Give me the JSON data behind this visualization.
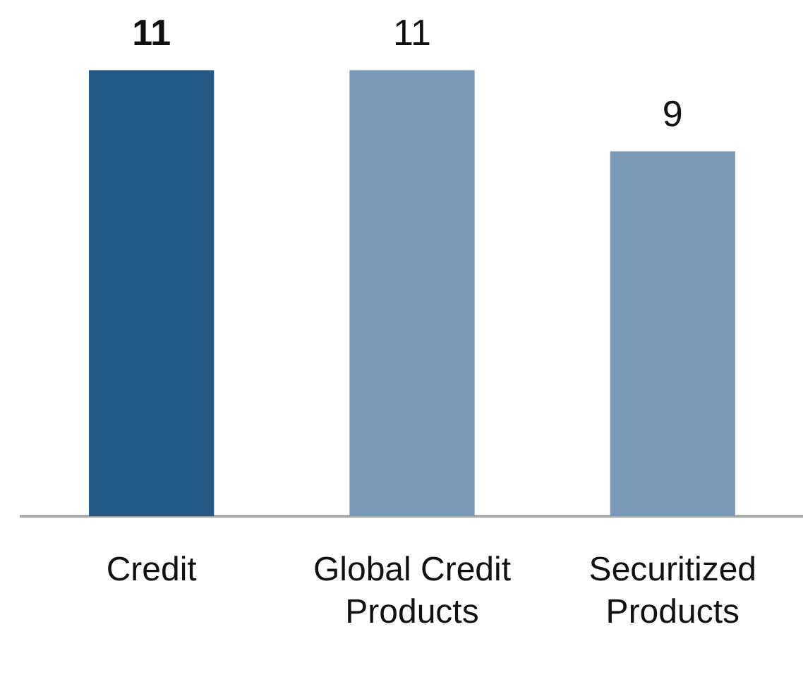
{
  "chart_data": {
    "type": "bar",
    "categories": [
      "Credit",
      "Global Credit Products",
      "Securitized Products"
    ],
    "values": [
      11,
      11,
      9
    ],
    "colors": [
      "#235a85",
      "#7a9ab7",
      "#7a9ab7"
    ],
    "data_labels": true,
    "grid": false,
    "legend": false
  }
}
